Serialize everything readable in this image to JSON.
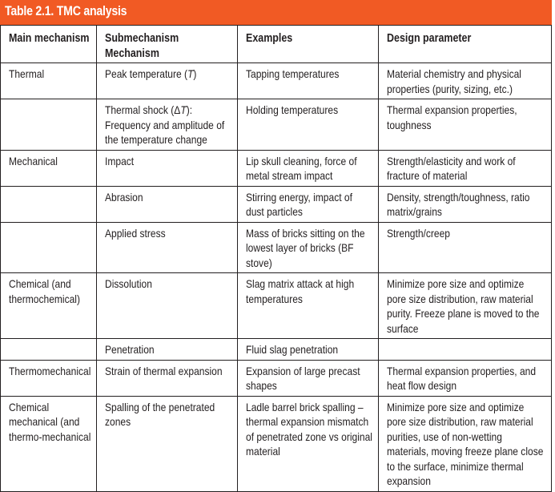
{
  "table_title": "Table 2.1. TMC analysis",
  "headers": [
    "Main mechanism",
    "Submechanism Mechanism",
    "Examples",
    "Design parameter"
  ],
  "rows": [
    [
      "Thermal",
      "Peak temperature (T)",
      "Tapping temperatures",
      "Material chemistry and physical properties (purity, sizing, etc.)"
    ],
    [
      "",
      "Thermal shock (ΔT): Frequency and amplitude of the temperature change",
      "Holding temperatures",
      "Thermal expansion properties, toughness"
    ],
    [
      "Mechanical",
      "Impact",
      "Lip skull cleaning, force of metal stream impact",
      "Strength/elasticity and work of fracture of material"
    ],
    [
      "",
      "Abrasion",
      "Stirring energy, impact of dust particles",
      "Density, strength/toughness, ratio matrix/grains"
    ],
    [
      "",
      "Applied stress",
      "Mass of bricks sitting on the lowest layer of bricks (BF stove)",
      "Strength/creep"
    ],
    [
      "Chemical (and thermochemical)",
      "Dissolution",
      "Slag matrix attack at high temperatures",
      "Minimize pore size and optimize pore size distribution, raw material purity. Freeze plane is moved to the surface"
    ],
    [
      "",
      "Penetration",
      "Fluid slag penetration",
      ""
    ],
    [
      "Thermomechanical",
      "Strain of thermal expansion",
      "Expansion of large precast shapes",
      "Thermal expansion properties, and heat flow design"
    ],
    [
      "Chemical mechanical (and thermo-mechanical",
      "Spalling of the penetrated zones",
      "Ladle barrel brick spalling – thermal expansion mismatch of penetrated zone vs original material",
      "Minimize pore size and optimize pore size distribution, raw material purities, use of non-wetting materials, moving freeze plane close to the surface, minimize thermal expansion"
    ]
  ],
  "colors": {
    "title_bg": "#f15a24",
    "title_text": "#ffffff",
    "text": "#231f20"
  }
}
